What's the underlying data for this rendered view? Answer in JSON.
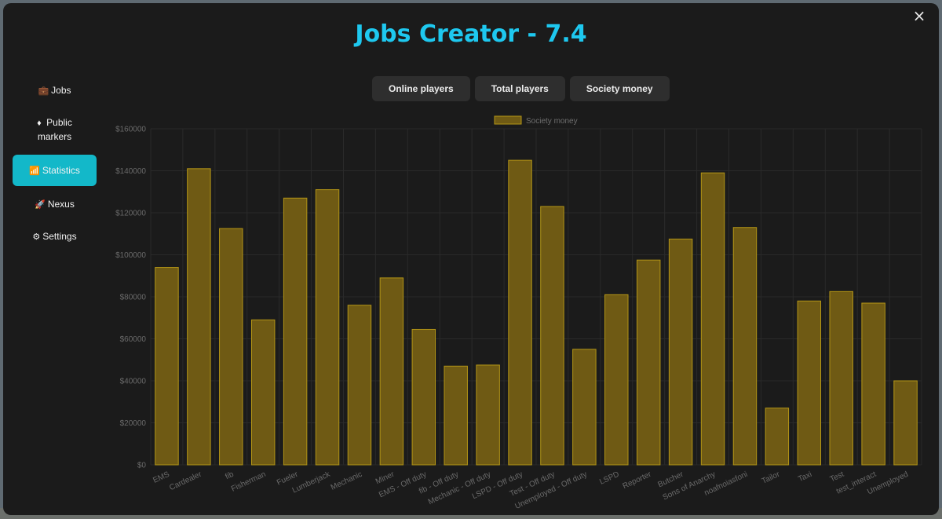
{
  "app": {
    "title": "Jobs Creator - 7.4",
    "close_icon": "×"
  },
  "sidebar": {
    "items": [
      {
        "label": "Jobs",
        "icon": "briefcase-icon",
        "glyph": "💼",
        "active": false
      },
      {
        "label": "Public markers",
        "icon": "map-marker-icon",
        "glyph": "♦",
        "active": false
      },
      {
        "label": "Statistics",
        "icon": "bar-chart-icon",
        "glyph": "📶",
        "active": true
      },
      {
        "label": "Nexus",
        "icon": "rocket-icon",
        "glyph": "🚀",
        "active": false
      },
      {
        "label": "Settings",
        "icon": "gear-icon",
        "glyph": "⚙",
        "active": false
      }
    ]
  },
  "tabs": [
    {
      "label": "Online players"
    },
    {
      "label": "Total players"
    },
    {
      "label": "Society money"
    }
  ],
  "chart_data": {
    "type": "bar",
    "legend": {
      "label": "Society money",
      "position": "top"
    },
    "colors": {
      "fill": "#6f5a14",
      "stroke": "#b39516",
      "grid": "#2a2a2a",
      "ticks": "#6a6a6a"
    },
    "ylim": [
      0,
      160000
    ],
    "yticks": [
      "$0",
      "$20000",
      "$40000",
      "$60000",
      "$80000",
      "$100000",
      "$120000",
      "$140000",
      "$160000"
    ],
    "categories": [
      "EMS",
      "Cardealer",
      "fib",
      "Fisherman",
      "Fueler",
      "Lumberjack",
      "Mechanic",
      "Miner",
      "EMS - Off duty",
      "fib - Off duty",
      "Mechanic - Off duty",
      "LSPD - Off duty",
      "Test - Off duty",
      "Unemployed - Off duty",
      "LSPD",
      "Reporter",
      "Butcher",
      "Sons of Anarchy",
      "noafnoiasfoni",
      "Tailor",
      "Taxi",
      "Test",
      "test_interact",
      "Unemployed"
    ],
    "values": [
      94000,
      141000,
      112500,
      69000,
      127000,
      131000,
      76000,
      89000,
      64500,
      47000,
      47500,
      145000,
      123000,
      55000,
      81000,
      97500,
      107500,
      139000,
      113000,
      27000,
      78000,
      82500,
      77000,
      40000
    ]
  }
}
